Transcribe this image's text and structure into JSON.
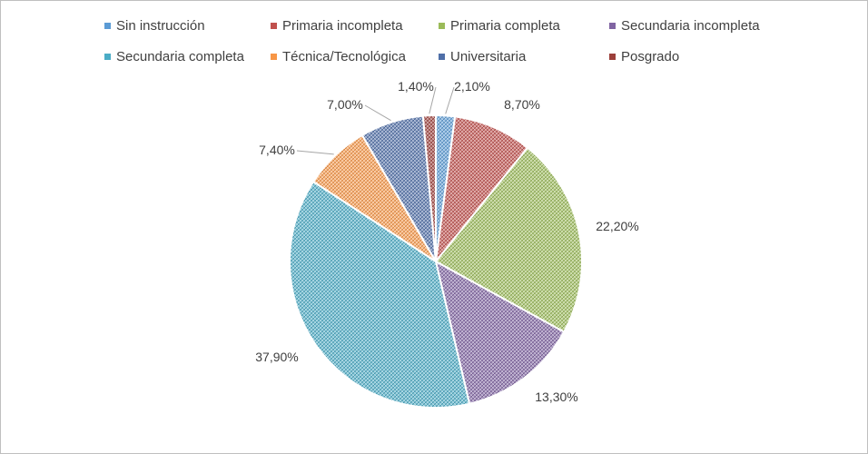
{
  "chart_data": {
    "type": "pie",
    "categories": [
      "Sin instrucción",
      "Primaria incompleta",
      "Primaria completa",
      "Secundaria incompleta",
      "Secundaria completa",
      "Técnica/Tecnológica",
      "Universitaria",
      "Posgrado"
    ],
    "values": [
      2.1,
      8.7,
      22.2,
      13.3,
      37.9,
      7.4,
      7.0,
      1.4
    ],
    "labels": [
      "2,10%",
      "8,70%",
      "22,20%",
      "13,30%",
      "37,90%",
      "7,40%",
      "7,00%",
      "1,40%"
    ],
    "colors": [
      "#5b9bd5",
      "#c0504d",
      "#9bbb59",
      "#8064a2",
      "#4bacc6",
      "#f79646",
      "#4f6fa8",
      "#9c3f3a"
    ],
    "legend_position": "top",
    "start_angle_deg": 0,
    "direction": "clockwise"
  }
}
